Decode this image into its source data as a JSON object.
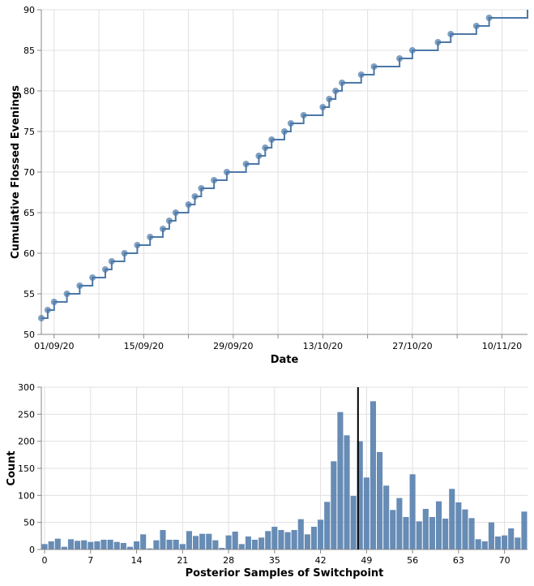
{
  "colors": {
    "series": "#4c78a8",
    "rule": "#000000"
  },
  "chart_data": [
    {
      "type": "line",
      "interpolation": "step-after",
      "points": true,
      "xlabel": "Date",
      "ylabel": "Cumulative Flossed Evenings",
      "x_tick_labels": [
        "01/09/20",
        "15/09/20",
        "29/09/20",
        "13/10/20",
        "27/10/20",
        "10/11/20"
      ],
      "xlim": [
        "2020-08-30",
        "2020-11-14"
      ],
      "ylim": [
        50,
        90
      ],
      "y_ticks": [
        50,
        55,
        60,
        65,
        70,
        75,
        80,
        85,
        90
      ],
      "grid": true,
      "series": [
        {
          "x": [
            "2020-08-30",
            "2020-08-31",
            "2020-09-01",
            "2020-09-03",
            "2020-09-05",
            "2020-09-07",
            "2020-09-09",
            "2020-09-10",
            "2020-09-12",
            "2020-09-14",
            "2020-09-16",
            "2020-09-18",
            "2020-09-19",
            "2020-09-20",
            "2020-09-22",
            "2020-09-23",
            "2020-09-24",
            "2020-09-26",
            "2020-09-28",
            "2020-10-01",
            "2020-10-03",
            "2020-10-04",
            "2020-10-05",
            "2020-10-07",
            "2020-10-08",
            "2020-10-10",
            "2020-10-13",
            "2020-10-14",
            "2020-10-15",
            "2020-10-16",
            "2020-10-19",
            "2020-10-21",
            "2020-10-25",
            "2020-10-27",
            "2020-10-31",
            "2020-11-02",
            "2020-11-06",
            "2020-11-08",
            "2020-11-14"
          ],
          "y": [
            52,
            53,
            54,
            55,
            56,
            57,
            58,
            59,
            60,
            61,
            62,
            63,
            64,
            65,
            66,
            67,
            68,
            69,
            70,
            71,
            72,
            73,
            74,
            75,
            76,
            77,
            78,
            79,
            80,
            81,
            82,
            83,
            84,
            85,
            86,
            87,
            88,
            89,
            90
          ]
        }
      ]
    },
    {
      "type": "bar",
      "xlabel": "Posterior Samples of Switchpoint",
      "ylabel": "Count",
      "x_tick_labels": [
        "0",
        "7",
        "14",
        "21",
        "28",
        "35",
        "42",
        "49",
        "56",
        "63",
        "70"
      ],
      "xlim": [
        -0.5,
        73.5
      ],
      "ylim": [
        0,
        300
      ],
      "y_ticks": [
        0,
        50,
        100,
        150,
        200,
        250,
        300
      ],
      "grid": true,
      "rule_x": 47.7,
      "categories": [
        0,
        1,
        2,
        3,
        4,
        5,
        6,
        7,
        8,
        9,
        10,
        11,
        12,
        13,
        14,
        15,
        16,
        17,
        18,
        19,
        20,
        21,
        22,
        23,
        24,
        25,
        26,
        27,
        28,
        29,
        30,
        31,
        32,
        33,
        34,
        35,
        36,
        37,
        38,
        39,
        40,
        41,
        42,
        43,
        44,
        45,
        46,
        47,
        48,
        49,
        50,
        51,
        52,
        53,
        54,
        55,
        56,
        57,
        58,
        59,
        60,
        61,
        62,
        63,
        64,
        65,
        66,
        67,
        68,
        69,
        70,
        71,
        72,
        73
      ],
      "values": [
        10,
        15,
        20,
        5,
        19,
        16,
        17,
        14,
        15,
        18,
        18,
        14,
        12,
        5,
        15,
        28,
        2,
        17,
        36,
        18,
        18,
        10,
        34,
        25,
        29,
        29,
        17,
        3,
        26,
        33,
        10,
        24,
        18,
        22,
        34,
        42,
        36,
        32,
        36,
        56,
        28,
        42,
        55,
        88,
        163,
        254,
        211,
        99,
        200,
        133,
        274,
        180,
        118,
        73,
        95,
        60,
        139,
        52,
        75,
        60,
        89,
        57,
        112,
        87,
        74,
        58,
        19,
        15,
        50,
        24,
        26,
        39,
        22,
        70
      ]
    }
  ]
}
